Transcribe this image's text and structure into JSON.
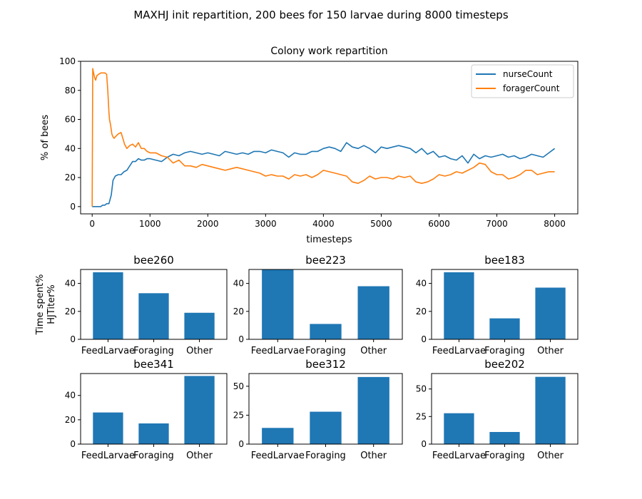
{
  "figure": {
    "suptitle": "MAXHJ init repartition, 200 bees for 150 larvae during 8000 timesteps"
  },
  "chart_data": [
    {
      "type": "line",
      "title": "Colony work repartition",
      "xlabel": "timesteps",
      "ylabel": "% of bees",
      "xlim": [
        -200,
        8400
      ],
      "ylim": [
        -5,
        100
      ],
      "xticks": [
        0,
        1000,
        2000,
        3000,
        4000,
        5000,
        6000,
        7000,
        8000
      ],
      "yticks": [
        0,
        20,
        40,
        60,
        80,
        100
      ],
      "legend": "top-right",
      "series": [
        {
          "name": "nurseCount",
          "color": "#1f77b4",
          "x": [
            0,
            20,
            80,
            150,
            180,
            220,
            250,
            290,
            330,
            360,
            400,
            450,
            500,
            550,
            600,
            650,
            700,
            750,
            800,
            850,
            900,
            950,
            1000,
            1100,
            1200,
            1300,
            1400,
            1500,
            1600,
            1700,
            1800,
            1900,
            2000,
            2100,
            2200,
            2300,
            2400,
            2500,
            2600,
            2700,
            2800,
            2900,
            3000,
            3100,
            3200,
            3300,
            3400,
            3500,
            3600,
            3700,
            3800,
            3900,
            4000,
            4100,
            4200,
            4300,
            4400,
            4500,
            4600,
            4700,
            4800,
            4900,
            5000,
            5100,
            5200,
            5300,
            5400,
            5500,
            5600,
            5700,
            5800,
            5900,
            6000,
            6100,
            6200,
            6300,
            6400,
            6500,
            6600,
            6700,
            6800,
            6900,
            7000,
            7100,
            7200,
            7300,
            7400,
            7500,
            7600,
            7700,
            7800,
            7900,
            8000
          ],
          "values": [
            0,
            0,
            0,
            0,
            1,
            1,
            2,
            2,
            8,
            18,
            21,
            22,
            22,
            24,
            25,
            28,
            31,
            31,
            33,
            32,
            32,
            33,
            33,
            32,
            31,
            34,
            36,
            35,
            37,
            38,
            37,
            36,
            37,
            36,
            35,
            38,
            37,
            36,
            37,
            36,
            38,
            38,
            37,
            39,
            38,
            37,
            34,
            37,
            36,
            36,
            38,
            38,
            40,
            41,
            40,
            38,
            44,
            41,
            40,
            42,
            40,
            37,
            41,
            40,
            41,
            42,
            41,
            40,
            37,
            40,
            36,
            38,
            34,
            35,
            33,
            32,
            35,
            30,
            36,
            33,
            35,
            34,
            35,
            36,
            34,
            35,
            33,
            34,
            36,
            35,
            34,
            37,
            40
          ]
        },
        {
          "name": "foragerCount",
          "color": "#ff7f0e",
          "x": [
            0,
            10,
            20,
            40,
            60,
            80,
            110,
            150,
            180,
            220,
            250,
            270,
            290,
            300,
            320,
            340,
            360,
            380,
            400,
            450,
            500,
            530,
            560,
            600,
            650,
            700,
            750,
            800,
            850,
            900,
            950,
            1000,
            1100,
            1200,
            1300,
            1400,
            1500,
            1600,
            1700,
            1800,
            1900,
            2000,
            2100,
            2200,
            2300,
            2400,
            2500,
            2600,
            2700,
            2800,
            2900,
            3000,
            3100,
            3200,
            3300,
            3400,
            3500,
            3600,
            3700,
            3800,
            3900,
            4000,
            4100,
            4200,
            4300,
            4400,
            4500,
            4600,
            4700,
            4800,
            4900,
            5000,
            5100,
            5200,
            5300,
            5400,
            5500,
            5600,
            5700,
            5800,
            5900,
            6000,
            6100,
            6200,
            6300,
            6400,
            6500,
            6600,
            6700,
            6800,
            6900,
            7000,
            7100,
            7200,
            7300,
            7400,
            7500,
            7600,
            7700,
            7800,
            7900,
            8000
          ],
          "values": [
            0,
            95,
            93,
            89,
            87,
            90,
            91,
            92,
            92,
            92,
            91,
            80,
            65,
            60,
            56,
            50,
            48,
            47,
            48,
            50,
            51,
            47,
            43,
            40,
            42,
            43,
            41,
            44,
            40,
            40,
            38,
            37,
            37,
            35,
            34,
            30,
            32,
            28,
            28,
            27,
            29,
            28,
            27,
            26,
            25,
            26,
            27,
            26,
            25,
            24,
            23,
            21,
            22,
            21,
            21,
            19,
            22,
            21,
            22,
            20,
            22,
            25,
            24,
            23,
            22,
            21,
            17,
            16,
            18,
            21,
            19,
            20,
            20,
            19,
            21,
            20,
            21,
            17,
            16,
            17,
            19,
            22,
            21,
            22,
            24,
            23,
            25,
            27,
            30,
            29,
            24,
            22,
            22,
            19,
            20,
            22,
            25,
            25,
            22,
            23,
            24,
            24
          ]
        }
      ]
    },
    {
      "type": "bar",
      "title": "bee260",
      "ylabel": "Time spent%\nHJTiter%",
      "categories": [
        "FeedLarvae",
        "Foraging",
        "Other"
      ],
      "values": [
        48,
        33,
        19
      ],
      "ylim": [
        0,
        50
      ],
      "yticks": [
        0,
        20,
        40
      ],
      "color": "#1f77b4"
    },
    {
      "type": "bar",
      "title": "bee223",
      "categories": [
        "FeedLarvae",
        "Foraging",
        "Other"
      ],
      "values": [
        50,
        11,
        38
      ],
      "ylim": [
        0,
        50
      ],
      "yticks": [
        0,
        20,
        40
      ],
      "color": "#1f77b4"
    },
    {
      "type": "bar",
      "title": "bee183",
      "categories": [
        "FeedLarvae",
        "Foraging",
        "Other"
      ],
      "values": [
        48,
        15,
        37
      ],
      "ylim": [
        0,
        50
      ],
      "yticks": [
        0,
        20,
        40
      ],
      "color": "#1f77b4"
    },
    {
      "type": "bar",
      "title": "bee341",
      "categories": [
        "FeedLarvae",
        "Foraging",
        "Other"
      ],
      "values": [
        26,
        17,
        56
      ],
      "ylim": [
        0,
        58
      ],
      "yticks": [
        0,
        20,
        40
      ],
      "color": "#1f77b4"
    },
    {
      "type": "bar",
      "title": "bee312",
      "categories": [
        "FeedLarvae",
        "Foraging",
        "Other"
      ],
      "values": [
        14,
        28,
        58
      ],
      "ylim": [
        0,
        61
      ],
      "yticks": [
        0,
        25,
        50
      ],
      "color": "#1f77b4"
    },
    {
      "type": "bar",
      "title": "bee202",
      "categories": [
        "FeedLarvae",
        "Foraging",
        "Other"
      ],
      "values": [
        28,
        11,
        61
      ],
      "ylim": [
        0,
        64
      ],
      "yticks": [
        0,
        25,
        50
      ],
      "color": "#1f77b4"
    }
  ]
}
